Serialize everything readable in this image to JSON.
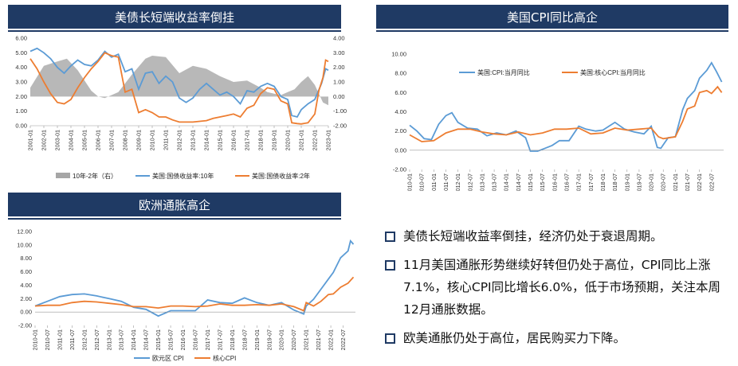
{
  "panels": {
    "p1": {
      "title": "美债长短端收益率倒挂"
    },
    "p2": {
      "title": "美国CPI同比高企"
    },
    "p3": {
      "title": "欧洲通胀高企"
    }
  },
  "bullets": [
    "美债长短端收益率倒挂，经济仍处于衰退周期。",
    "11月美国通胀形势继续好转但仍处于高位，CPI同比上涨7.1%，核心CPI同比增长6.0%，低于市场预期，关注本周12月通胀数据。",
    "欧美通胀仍处于高位，居民购买力下降。"
  ],
  "chart_data": [
    {
      "type": "line",
      "title": "美债长短端收益率倒挂",
      "colors": {
        "spread": "#a6a6a6",
        "y10": "#5b9bd5",
        "y2": "#ed7d31"
      },
      "x_ticks": [
        "2001-01",
        "2002-01",
        "2003-01",
        "2004-01",
        "2005-01",
        "2006-01",
        "2007-01",
        "2008-01",
        "2009-01",
        "2010-01",
        "2011-01",
        "2012-01",
        "2013-01",
        "2014-01",
        "2015-01",
        "2016-01",
        "2017-01",
        "2018-01",
        "2019-01",
        "2020-01",
        "2021-01",
        "2022-01",
        "2023-01"
      ],
      "y_left": {
        "lim": [
          0,
          6
        ],
        "ticks": [
          "0.00",
          "1.00",
          "2.00",
          "3.00",
          "4.00",
          "5.00",
          "6.00"
        ]
      },
      "y_right": {
        "lim": [
          -2,
          4
        ],
        "ticks": [
          "-2.00",
          "-1.00",
          "0.00",
          "1.00",
          "2.00",
          "3.00",
          "4.00"
        ]
      },
      "series": [
        {
          "name": "10年-2年（右）",
          "kind": "area",
          "axis": "right",
          "x": [
            2001.0,
            2002.0,
            2003.0,
            2003.7,
            2004.5,
            2005.5,
            2006.0,
            2006.5,
            2007.5,
            2008.5,
            2009.5,
            2010.0,
            2011.0,
            2012.0,
            2013.0,
            2014.0,
            2015.0,
            2016.0,
            2017.0,
            2018.0,
            2018.5,
            2019.0,
            2019.5,
            2020.0,
            2020.5,
            2021.0,
            2021.5,
            2022.0,
            2022.3,
            2022.6,
            2023.0
          ],
          "y": [
            0.6,
            2.1,
            2.4,
            2.6,
            1.8,
            0.4,
            0.0,
            -0.1,
            0.3,
            1.5,
            2.6,
            2.8,
            2.7,
            1.6,
            2.1,
            1.9,
            1.4,
            1.0,
            1.1,
            0.6,
            0.3,
            0.2,
            0.1,
            0.3,
            0.5,
            1.0,
            1.4,
            0.8,
            0.2,
            -0.4,
            -0.6
          ]
        },
        {
          "name": "美国:国债收益率:10年",
          "kind": "line",
          "axis": "left",
          "x": [
            2001.0,
            2001.5,
            2002.0,
            2002.5,
            2003.0,
            2003.5,
            2004.0,
            2004.5,
            2005.0,
            2005.5,
            2006.0,
            2006.5,
            2007.0,
            2007.5,
            2008.0,
            2008.5,
            2009.0,
            2009.5,
            2010.0,
            2010.5,
            2011.0,
            2011.5,
            2012.0,
            2012.5,
            2013.0,
            2013.5,
            2014.0,
            2014.5,
            2015.0,
            2015.5,
            2016.0,
            2016.5,
            2017.0,
            2017.5,
            2018.0,
            2018.5,
            2019.0,
            2019.5,
            2020.0,
            2020.3,
            2020.7,
            2021.0,
            2021.5,
            2022.0,
            2022.5,
            2022.8,
            2023.0
          ],
          "y": [
            5.1,
            5.3,
            5.0,
            4.6,
            4.0,
            3.6,
            4.1,
            4.5,
            4.2,
            4.1,
            4.5,
            5.1,
            4.7,
            4.9,
            3.7,
            3.9,
            2.5,
            3.6,
            3.7,
            2.9,
            3.4,
            3.0,
            1.9,
            1.6,
            1.9,
            2.5,
            2.9,
            2.5,
            2.1,
            2.3,
            2.0,
            1.5,
            2.4,
            2.3,
            2.7,
            2.9,
            2.7,
            2.0,
            1.8,
            0.7,
            0.6,
            1.1,
            1.5,
            1.8,
            2.9,
            3.9,
            3.8
          ]
        },
        {
          "name": "美国:国债收益率:2年",
          "kind": "line",
          "axis": "left",
          "x": [
            2001.0,
            2001.5,
            2002.0,
            2002.5,
            2003.0,
            2003.5,
            2004.0,
            2004.5,
            2005.0,
            2005.5,
            2006.0,
            2006.5,
            2007.0,
            2007.5,
            2008.0,
            2008.5,
            2009.0,
            2009.5,
            2010.0,
            2010.5,
            2011.0,
            2011.5,
            2012.0,
            2012.5,
            2013.0,
            2013.5,
            2014.0,
            2014.5,
            2015.0,
            2015.5,
            2016.0,
            2016.5,
            2017.0,
            2017.5,
            2018.0,
            2018.5,
            2019.0,
            2019.5,
            2020.0,
            2020.3,
            2020.7,
            2021.0,
            2021.5,
            2022.0,
            2022.3,
            2022.6,
            2022.8,
            2023.0
          ],
          "y": [
            4.6,
            3.9,
            3.0,
            2.2,
            1.6,
            1.5,
            1.8,
            2.6,
            3.3,
            3.9,
            4.4,
            5.0,
            4.8,
            4.7,
            2.3,
            2.5,
            0.9,
            1.1,
            0.9,
            0.6,
            0.6,
            0.4,
            0.25,
            0.25,
            0.25,
            0.3,
            0.35,
            0.5,
            0.6,
            0.7,
            0.8,
            0.6,
            1.2,
            1.4,
            2.2,
            2.6,
            2.5,
            1.7,
            1.5,
            0.2,
            0.15,
            0.12,
            0.2,
            0.8,
            2.4,
            3.3,
            4.5,
            4.4
          ]
        }
      ]
    },
    {
      "type": "line",
      "title": "美国CPI同比高企",
      "colors": {
        "cpi": "#5b9bd5",
        "core": "#ed7d31"
      },
      "x_ticks": [
        "2010-01",
        "2010-07",
        "2011-01",
        "2011-07",
        "2012-01",
        "2012-07",
        "2013-01",
        "2013-07",
        "2014-01",
        "2014-07",
        "2015-01",
        "2015-07",
        "2016-01",
        "2016-07",
        "2017-01",
        "2017-07",
        "2018-01",
        "2018-07",
        "2019-01",
        "2019-07",
        "2020-01",
        "2020-07",
        "2021-01",
        "2021-07",
        "2022-01",
        "2022-07"
      ],
      "y": {
        "lim": [
          -2,
          10
        ],
        "ticks": [
          "-2.00",
          "0.00",
          "2.00",
          "4.00",
          "6.00",
          "8.00",
          "10.00"
        ]
      },
      "series": [
        {
          "name": "美国:CPI:当月同比",
          "x": [
            2010.0,
            2010.3,
            2010.6,
            2010.9,
            2011.2,
            2011.5,
            2011.75,
            2012.0,
            2012.4,
            2012.8,
            2013.2,
            2013.6,
            2014.0,
            2014.4,
            2014.8,
            2015.0,
            2015.3,
            2015.6,
            2015.9,
            2016.2,
            2016.6,
            2017.0,
            2017.3,
            2017.7,
            2018.0,
            2018.5,
            2018.9,
            2019.3,
            2019.7,
            2020.0,
            2020.25,
            2020.4,
            2020.7,
            2021.0,
            2021.3,
            2021.5,
            2021.8,
            2022.0,
            2022.3,
            2022.5,
            2022.7,
            2022.92
          ],
          "y": [
            2.6,
            2.0,
            1.2,
            1.1,
            2.7,
            3.6,
            3.9,
            2.9,
            2.3,
            2.2,
            1.5,
            1.8,
            1.6,
            2.0,
            1.3,
            -0.1,
            -0.1,
            0.2,
            0.5,
            1.0,
            1.0,
            2.5,
            2.2,
            2.0,
            2.1,
            2.9,
            2.2,
            1.9,
            1.7,
            2.5,
            0.3,
            0.2,
            1.3,
            1.4,
            4.2,
            5.4,
            6.2,
            7.5,
            8.3,
            9.1,
            8.2,
            7.1
          ]
        },
        {
          "name": "美国:核心CPI:当月同比",
          "x": [
            2010.0,
            2010.5,
            2011.0,
            2011.5,
            2012.0,
            2012.5,
            2013.0,
            2013.5,
            2014.0,
            2014.5,
            2015.0,
            2015.5,
            2016.0,
            2016.5,
            2017.0,
            2017.5,
            2018.0,
            2018.5,
            2019.0,
            2019.5,
            2020.0,
            2020.3,
            2020.5,
            2021.0,
            2021.3,
            2021.5,
            2021.8,
            2022.0,
            2022.3,
            2022.5,
            2022.75,
            2022.92
          ],
          "y": [
            1.6,
            0.9,
            1.0,
            1.8,
            2.2,
            2.2,
            1.9,
            1.7,
            1.6,
            1.9,
            1.6,
            1.8,
            2.2,
            2.2,
            2.3,
            1.7,
            1.8,
            2.3,
            2.1,
            2.2,
            2.3,
            1.4,
            1.2,
            1.4,
            3.0,
            4.3,
            4.6,
            6.0,
            6.2,
            5.9,
            6.6,
            6.0
          ]
        }
      ]
    },
    {
      "type": "line",
      "title": "欧洲通胀高企",
      "colors": {
        "hicp": "#5b9bd5",
        "core": "#ed7d31"
      },
      "x_ticks": [
        "2010-01",
        "2010-07",
        "2011-01",
        "2011-07",
        "2012-01",
        "2012-07",
        "2013-01",
        "2013-07",
        "2014-01",
        "2014-07",
        "2015-01",
        "2015-07",
        "2016-01",
        "2016-07",
        "2017-01",
        "2017-07",
        "2018-01",
        "2018-07",
        "2019-01",
        "2019-07",
        "2020-01",
        "2020-07",
        "2021-01",
        "2021-07",
        "2022-01",
        "2022-07"
      ],
      "y": {
        "lim": [
          -2,
          12
        ],
        "ticks": [
          "-2.00",
          "0.00",
          "2.00",
          "4.00",
          "6.00",
          "8.00",
          "10.00",
          "12.00"
        ]
      },
      "series": [
        {
          "name": "欧元区 CPI",
          "x": [
            2010.0,
            2010.5,
            2011.0,
            2011.5,
            2012.0,
            2012.5,
            2013.0,
            2013.5,
            2014.0,
            2014.5,
            2015.0,
            2015.5,
            2016.0,
            2016.5,
            2017.0,
            2017.5,
            2018.0,
            2018.5,
            2019.0,
            2019.5,
            2020.0,
            2020.5,
            2020.9,
            2021.0,
            2021.3,
            2021.6,
            2021.9,
            2022.1,
            2022.4,
            2022.7,
            2022.8,
            2022.92
          ],
          "y": [
            0.9,
            1.6,
            2.3,
            2.6,
            2.7,
            2.4,
            2.0,
            1.6,
            0.7,
            0.4,
            -0.6,
            0.2,
            0.2,
            0.2,
            1.8,
            1.4,
            1.3,
            2.1,
            1.4,
            1.0,
            1.4,
            0.3,
            -0.3,
            0.9,
            1.9,
            3.4,
            4.9,
            5.9,
            8.1,
            9.1,
            10.6,
            10.1
          ]
        },
        {
          "name": "核心CPI",
          "x": [
            2010.0,
            2010.5,
            2011.0,
            2011.5,
            2012.0,
            2012.5,
            2013.0,
            2013.5,
            2014.0,
            2014.5,
            2015.0,
            2015.5,
            2016.0,
            2016.5,
            2017.0,
            2017.5,
            2018.0,
            2018.5,
            2019.0,
            2019.5,
            2020.0,
            2020.5,
            2020.9,
            2021.0,
            2021.3,
            2021.6,
            2021.9,
            2022.1,
            2022.4,
            2022.7,
            2022.92
          ],
          "y": [
            0.9,
            1.0,
            1.0,
            1.4,
            1.6,
            1.5,
            1.3,
            1.1,
            0.8,
            0.8,
            0.6,
            0.9,
            0.9,
            0.8,
            0.9,
            1.2,
            1.0,
            1.0,
            1.1,
            1.0,
            1.2,
            0.8,
            0.2,
            1.4,
            0.9,
            1.6,
            2.6,
            2.7,
            3.7,
            4.3,
            5.2
          ]
        }
      ]
    }
  ]
}
